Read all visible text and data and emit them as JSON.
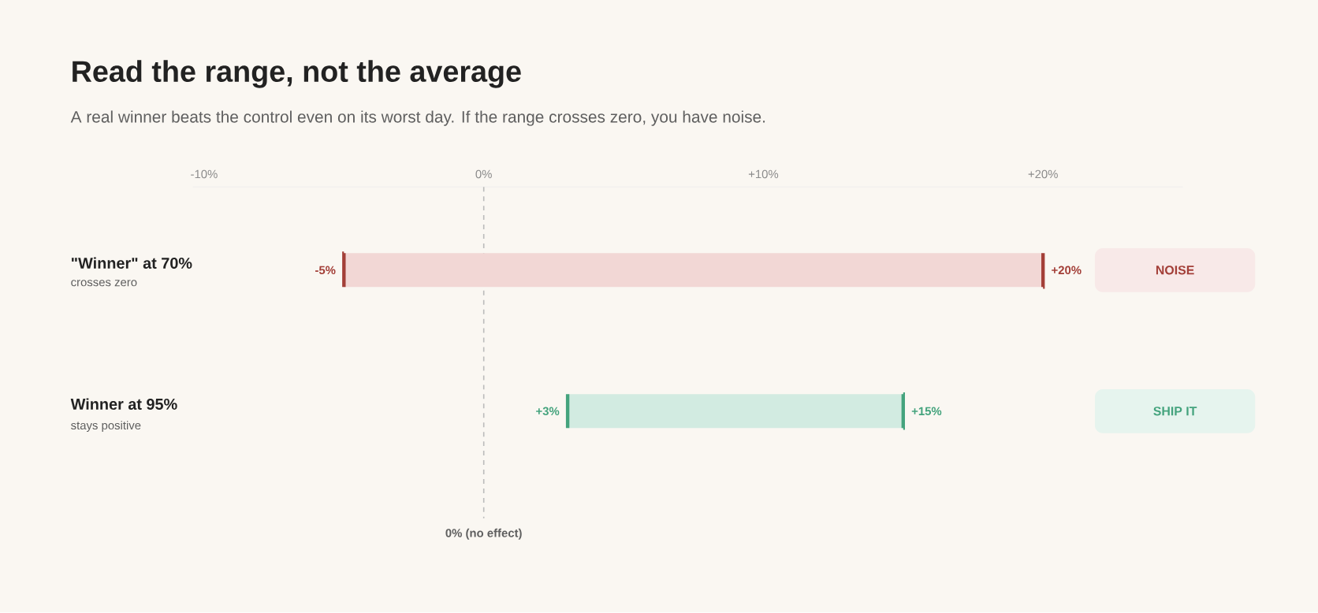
{
  "chart_data": {
    "type": "bar",
    "orientation": "horizontal",
    "title": "Read the range, not the average",
    "subtitle": "A real winner beats the control even on its worst day. If the range crosses zero, you have noise.",
    "categories": [
      "\"Winner\" at 70%",
      "Winner at 95%"
    ],
    "base": [
      -5,
      3
    ],
    "values": [
      25,
      12
    ],
    "colors": [
      "#f2d7d5",
      "#d2ebe1"
    ],
    "xlim": [
      -10.4,
      25
    ],
    "xticks": [
      {
        "value": -10,
        "label": "-10%"
      },
      {
        "value": 0,
        "label": "0%"
      },
      {
        "value": 10,
        "label": "+10%"
      },
      {
        "value": 20,
        "label": "+20%"
      }
    ],
    "ref_lines": [
      {
        "axis": "x",
        "value": 0,
        "label": "0% (no effect)",
        "line_style": "dashed",
        "color": "#bbbbbb"
      }
    ],
    "annotations": [
      "crosses zero",
      "stays positive",
      {
        "text": "-5%",
        "x": -5,
        "y": "\"Winner\" at 70%"
      },
      {
        "text": "+20%",
        "x": 20,
        "y": "\"Winner\" at 70%"
      },
      {
        "text": "+3%",
        "x": 3,
        "y": "Winner at 95%"
      },
      {
        "text": "+15%",
        "x": 15,
        "y": "Winner at 95%"
      },
      "NOISE",
      "SHIP IT"
    ]
  }
}
